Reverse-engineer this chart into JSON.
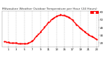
{
  "title": "Milwaukee Weather Outdoor Temperature per Hour (24 Hours)",
  "hours": [
    0,
    1,
    2,
    3,
    4,
    5,
    6,
    7,
    8,
    9,
    10,
    11,
    12,
    13,
    14,
    15,
    16,
    17,
    18,
    19,
    20,
    21,
    22,
    23
  ],
  "temps": [
    22,
    21,
    20,
    20,
    19,
    19,
    20,
    23,
    29,
    35,
    41,
    47,
    52,
    55,
    57,
    56,
    54,
    50,
    44,
    39,
    35,
    31,
    28,
    25
  ],
  "dot_color": "#ff0000",
  "bg_color": "#ffffff",
  "grid_color": "#999999",
  "highlight_box_color": "#ff0000",
  "ylim": [
    15,
    62
  ],
  "ytick_positions": [
    20,
    30,
    40,
    50,
    60
  ],
  "ytick_labels": [
    "20",
    "30",
    "40",
    "50",
    "60"
  ],
  "xtick_positions": [
    1,
    3,
    5,
    7,
    9,
    11,
    13,
    15,
    17,
    19,
    21,
    23
  ],
  "xtick_labels": [
    "1",
    "3",
    "5",
    "7",
    "9",
    "11",
    "13",
    "15",
    "17",
    "19",
    "21",
    "23"
  ],
  "marker_size": 1.2,
  "title_fontsize": 3.2,
  "tick_fontsize": 2.8
}
